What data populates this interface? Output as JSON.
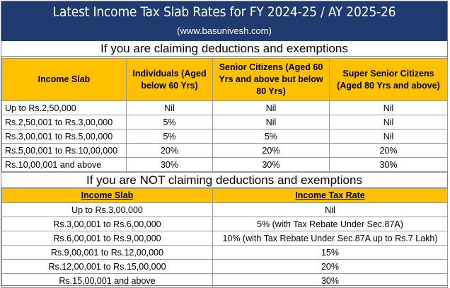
{
  "header": {
    "title": "Latest Income Tax Slab Rates for FY 2024-25 / AY 2025-26",
    "site": "(www.basunivesh.com)"
  },
  "section1": {
    "heading": "If you are claiming deductions and exemptions",
    "columns": [
      "Income Slab",
      "Individuals (Aged below 60 Yrs)",
      "Senior Citizens (Aged 60 Yrs and above but below 80 Yrs)",
      "Super Senior Citizens (Aged 80 Yrs and above)"
    ],
    "rows": [
      [
        "Up to Rs.2,50,000",
        "Nil",
        "Nil",
        "Nil"
      ],
      [
        "Rs.2,50,001 to Rs.3,00,000",
        "5%",
        "Nil",
        "Nil"
      ],
      [
        "Rs.3,00,001 to Rs.5,00,000",
        "5%",
        "5%",
        "Nil"
      ],
      [
        "Rs.5,00,001 to Rs.10,00,000",
        "20%",
        "20%",
        "20%"
      ],
      [
        "Rs.10,00,001 and above",
        "30%",
        "30%",
        "30%"
      ]
    ]
  },
  "section2": {
    "heading": "If you are NOT claiming deductions and exemptions",
    "columns": [
      "Income Slab",
      "Income Tax Rate"
    ],
    "rows": [
      [
        "Up to Rs.3,00,000",
        "Nil"
      ],
      [
        "Rs.3,00,001 to Rs.6,00,000",
        "5% (with Tax Rebate Under Sec.87A)"
      ],
      [
        "Rs.6,00,001 to Rs.9,00,000",
        "10% (with Tax Rebate Under Sec.87A up to Rs.7 Lakh)"
      ],
      [
        "Rs.9,00,001 to Rs.12,00,000",
        "15%"
      ],
      [
        "Rs.12,00,001 to Rs.15,00,000",
        "20%"
      ],
      [
        "Rs.15,00,001 and above",
        "30%"
      ]
    ]
  },
  "colors": {
    "banner": "#1f3b70",
    "header_fill": "#ffc000",
    "border": "#9a9a9a"
  }
}
